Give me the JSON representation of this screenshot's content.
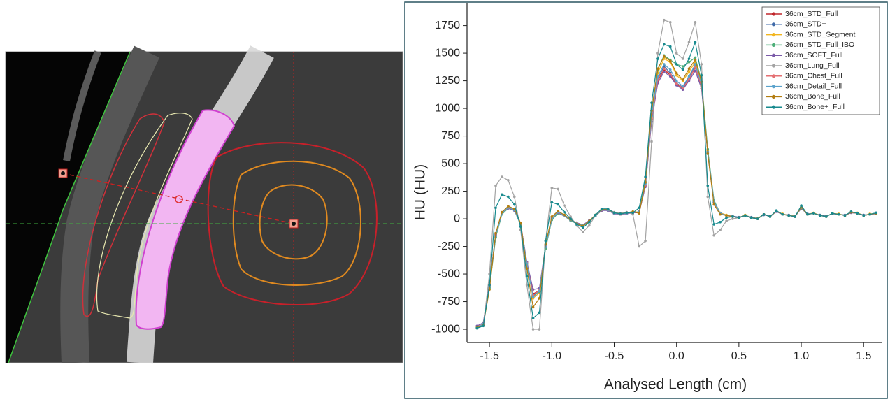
{
  "chart_data": {
    "type": "line",
    "y_label": "HU (HU)",
    "x_label": "Analysed Length (cm)",
    "xlim": [
      -1.68,
      1.65
    ],
    "ylim": [
      -1120,
      1950
    ],
    "xticks": [
      -1.5,
      {
        "value": -1.0,
        "label": "-1.0"
      },
      -0.5,
      {
        "value": 0,
        "label": "0.0"
      },
      0.5,
      {
        "value": 1.0,
        "label": "1.0"
      },
      1.5
    ],
    "yticks": [
      -1000,
      -750,
      -500,
      -250,
      0,
      250,
      500,
      750,
      1000,
      1250,
      1500,
      1750
    ],
    "legend": "upper right",
    "x": [
      -1.6,
      -1.55,
      -1.5,
      -1.45,
      -1.4,
      -1.35,
      -1.3,
      -1.25,
      -1.2,
      -1.15,
      -1.1,
      -1.05,
      -1.0,
      -0.95,
      -0.9,
      -0.85,
      -0.8,
      -0.75,
      -0.7,
      -0.65,
      -0.6,
      -0.55,
      -0.5,
      -0.45,
      -0.4,
      -0.35,
      -0.3,
      -0.25,
      -0.2,
      -0.15,
      -0.1,
      -0.05,
      0,
      0.05,
      0.1,
      0.15,
      0.2,
      0.25,
      0.3,
      0.35,
      0.4,
      0.45,
      0.5,
      0.55,
      0.6,
      0.65,
      0.7,
      0.75,
      0.8,
      0.85,
      0.9,
      0.95,
      1.0,
      1.05,
      1.1,
      1.15,
      1.2,
      1.25,
      1.3,
      1.35,
      1.4,
      1.45,
      1.5,
      1.55,
      1.6
    ],
    "series": [
      {
        "name": "36cm_STD_Full",
        "color": "#c0262b",
        "values": [
          -980,
          -950,
          -600,
          -150,
          50,
          100,
          80,
          -50,
          -400,
          -680,
          -650,
          -250,
          0,
          60,
          30,
          -10,
          -40,
          -60,
          -20,
          30,
          80,
          80,
          50,
          40,
          50,
          60,
          60,
          300,
          900,
          1250,
          1350,
          1300,
          1220,
          1180,
          1260,
          1370,
          1200,
          600,
          150,
          50,
          30,
          20,
          10,
          30,
          10,
          0,
          40,
          20,
          70,
          40,
          30,
          20,
          100,
          40,
          50,
          30,
          20,
          50,
          40,
          30,
          60,
          50,
          30,
          40,
          50
        ]
      },
      {
        "name": "36cm_STD+",
        "color": "#3f6aa8",
        "values": [
          -985,
          -960,
          -620,
          -160,
          45,
          105,
          85,
          -45,
          -420,
          -700,
          -660,
          -260,
          -5,
          55,
          30,
          -15,
          -45,
          -60,
          -25,
          25,
          85,
          75,
          50,
          45,
          50,
          55,
          65,
          320,
          920,
          1270,
          1380,
          1320,
          1230,
          1190,
          1280,
          1390,
          1210,
          610,
          160,
          45,
          30,
          25,
          15,
          30,
          15,
          5,
          35,
          25,
          65,
          40,
          35,
          25,
          95,
          45,
          50,
          35,
          25,
          45,
          40,
          35,
          55,
          50,
          35,
          40,
          55
        ]
      },
      {
        "name": "36cm_STD_Segment",
        "color": "#f2b51d",
        "values": [
          -975,
          -955,
          -610,
          -140,
          55,
          110,
          85,
          -40,
          -410,
          -720,
          -670,
          -240,
          5,
          65,
          35,
          -5,
          -40,
          -55,
          -20,
          35,
          80,
          85,
          55,
          45,
          55,
          65,
          60,
          330,
          950,
          1320,
          1450,
          1420,
          1300,
          1250,
          1330,
          1420,
          1230,
          620,
          150,
          55,
          35,
          20,
          10,
          35,
          10,
          5,
          40,
          20,
          70,
          45,
          30,
          25,
          100,
          40,
          55,
          30,
          20,
          50,
          45,
          30,
          60,
          55,
          30,
          45,
          50
        ]
      },
      {
        "name": "36cm_STD_Full_IBO",
        "color": "#4cae78",
        "values": [
          -990,
          -960,
          -630,
          -170,
          40,
          95,
          75,
          -55,
          -430,
          -690,
          -660,
          -270,
          -10,
          50,
          25,
          -15,
          -45,
          -65,
          -25,
          25,
          75,
          80,
          50,
          40,
          50,
          55,
          60,
          340,
          980,
          1350,
          1480,
          1440,
          1400,
          1380,
          1420,
          1460,
          1250,
          630,
          170,
          50,
          30,
          20,
          10,
          30,
          10,
          0,
          40,
          20,
          70,
          40,
          30,
          20,
          100,
          40,
          50,
          30,
          20,
          50,
          40,
          30,
          60,
          50,
          30,
          40,
          50
        ]
      },
      {
        "name": "36cm_SOFT_Full",
        "color": "#7a5aa8",
        "values": [
          -970,
          -940,
          -590,
          -140,
          55,
          95,
          75,
          -45,
          -390,
          -640,
          -630,
          -240,
          5,
          55,
          25,
          -10,
          -35,
          -55,
          -15,
          30,
          75,
          75,
          45,
          40,
          45,
          55,
          55,
          290,
          880,
          1230,
          1330,
          1290,
          1210,
          1170,
          1250,
          1340,
          1180,
          590,
          150,
          50,
          30,
          20,
          10,
          30,
          10,
          0,
          40,
          20,
          65,
          40,
          30,
          20,
          95,
          40,
          50,
          30,
          20,
          50,
          40,
          30,
          55,
          50,
          30,
          40,
          45
        ]
      },
      {
        "name": "36cm_Lung_Full",
        "color": "#a3a3a3",
        "values": [
          -990,
          -970,
          -500,
          300,
          380,
          350,
          200,
          -100,
          -600,
          -1000,
          -1000,
          -200,
          280,
          270,
          120,
          20,
          -60,
          -120,
          -60,
          30,
          90,
          90,
          60,
          50,
          60,
          40,
          -250,
          -200,
          700,
          1500,
          1800,
          1780,
          1500,
          1450,
          1600,
          1780,
          1400,
          200,
          -150,
          -100,
          -20,
          0,
          10,
          30,
          10,
          0,
          40,
          20,
          70,
          40,
          30,
          20,
          110,
          40,
          50,
          30,
          20,
          50,
          40,
          30,
          60,
          50,
          30,
          40,
          50
        ]
      },
      {
        "name": "36cm_Chest_Full",
        "color": "#e46f72",
        "values": [
          -980,
          -950,
          -605,
          -150,
          50,
          100,
          80,
          -50,
          -400,
          -690,
          -650,
          -250,
          0,
          60,
          30,
          -10,
          -40,
          -60,
          -20,
          30,
          80,
          80,
          50,
          40,
          50,
          60,
          60,
          305,
          910,
          1260,
          1360,
          1310,
          1225,
          1185,
          1265,
          1375,
          1205,
          600,
          150,
          50,
          30,
          20,
          10,
          30,
          10,
          0,
          40,
          20,
          70,
          40,
          30,
          20,
          100,
          40,
          50,
          30,
          20,
          50,
          40,
          30,
          60,
          50,
          30,
          40,
          50
        ]
      },
      {
        "name": "36cm_Detail_Full",
        "color": "#5aa2cc",
        "values": [
          -982,
          -952,
          -610,
          -155,
          50,
          102,
          80,
          -52,
          -405,
          -710,
          -655,
          -255,
          0,
          62,
          30,
          -10,
          -42,
          -60,
          -20,
          30,
          82,
          80,
          50,
          42,
          50,
          60,
          60,
          315,
          930,
          1290,
          1400,
          1350,
          1250,
          1200,
          1290,
          1400,
          1215,
          605,
          155,
          50,
          30,
          20,
          10,
          30,
          10,
          0,
          40,
          20,
          70,
          40,
          30,
          20,
          100,
          40,
          50,
          30,
          20,
          50,
          40,
          30,
          60,
          50,
          30,
          40,
          50
        ]
      },
      {
        "name": "36cm_Bone_Full",
        "color": "#b37d10",
        "values": [
          -985,
          -965,
          -640,
          -130,
          60,
          115,
          90,
          -40,
          -450,
          -800,
          -720,
          -230,
          20,
          70,
          35,
          -5,
          -45,
          -65,
          -20,
          35,
          85,
          85,
          55,
          45,
          55,
          65,
          50,
          330,
          980,
          1360,
          1470,
          1430,
          1320,
          1260,
          1360,
          1440,
          1240,
          590,
          130,
          40,
          30,
          20,
          10,
          30,
          10,
          0,
          40,
          20,
          70,
          40,
          30,
          20,
          105,
          40,
          50,
          30,
          20,
          50,
          40,
          30,
          60,
          50,
          30,
          40,
          50
        ]
      },
      {
        "name": "36cm_Bone+_Full",
        "color": "#178a8e",
        "values": [
          -990,
          -970,
          -600,
          100,
          220,
          200,
          130,
          -70,
          -520,
          -900,
          -850,
          -200,
          150,
          130,
          60,
          0,
          -50,
          -80,
          -30,
          35,
          90,
          90,
          55,
          45,
          55,
          55,
          100,
          380,
          1050,
          1450,
          1580,
          1560,
          1400,
          1350,
          1450,
          1600,
          1300,
          300,
          -50,
          -30,
          10,
          20,
          10,
          30,
          10,
          0,
          40,
          20,
          75,
          40,
          30,
          20,
          120,
          40,
          50,
          30,
          20,
          50,
          40,
          30,
          65,
          50,
          30,
          40,
          55
        ]
      }
    ]
  }
}
